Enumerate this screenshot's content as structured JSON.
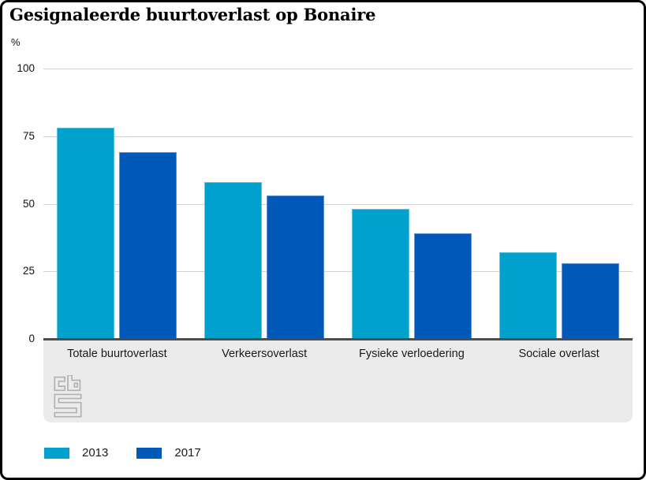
{
  "title": "Gesignaleerde buurtoverlast op Bonaire",
  "unit_label": "%",
  "chart_data": {
    "type": "bar",
    "title": "Gesignaleerde buurtoverlast op Bonaire",
    "xlabel": "",
    "ylabel": "%",
    "ylim": [
      0,
      100
    ],
    "yticks": [
      100,
      75,
      50,
      25,
      0
    ],
    "grid": true,
    "legend_position": "bottom-left",
    "categories": [
      "Totale buurtoverlast",
      "Verkeersoverlast",
      "Fysieke verloedering",
      "Sociale overlast"
    ],
    "series": [
      {
        "name": "2013",
        "color": "#00a1cd",
        "edge_color": "#5cc5e2",
        "values": [
          78,
          58,
          48,
          32
        ]
      },
      {
        "name": "2017",
        "color": "#0058b8",
        "edge_color": "#5e93d4",
        "values": [
          69,
          53,
          39,
          28
        ]
      }
    ]
  },
  "legend": {
    "items": [
      {
        "label": "2013",
        "color": "#00a1cd"
      },
      {
        "label": "2017",
        "color": "#0058b8"
      }
    ]
  },
  "footer_logo": "cbs-logo",
  "colors": {
    "axis_line": "#4d4d4d",
    "gridline": "#d2d2d2",
    "band_background": "#ebebeb",
    "frame_border": "#000000",
    "logo_gray": "#b1b1b1"
  }
}
